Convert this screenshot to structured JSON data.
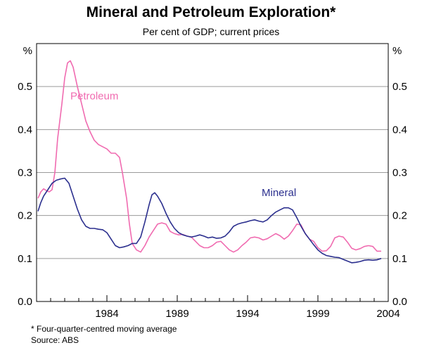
{
  "chart_data": {
    "type": "line",
    "title": "Mineral and Petroleum Exploration*",
    "subtitle": "Per cent of GDP; current prices",
    "ylabel_left": "%",
    "ylabel_right": "%",
    "ylim": [
      0,
      0.6
    ],
    "yticks": [
      0.0,
      0.1,
      0.2,
      0.3,
      0.4,
      0.5
    ],
    "ytick_labels": [
      "0.0",
      "0.1",
      "0.2",
      "0.3",
      "0.4",
      "0.5"
    ],
    "xlim": [
      1979.5,
      2004.5
    ],
    "xticks": [
      1984.5,
      1989.5,
      1994.5,
      1999.5,
      2004.5
    ],
    "xtick_labels": [
      "1984",
      "1989",
      "1994",
      "1999",
      "2004"
    ],
    "series": [
      {
        "name": "Petroleum",
        "color": "#f06bb0",
        "label_pos": [
          1981.9,
          0.47
        ],
        "x": [
          1979.6,
          1979.8,
          1980.0,
          1980.2,
          1980.4,
          1980.6,
          1980.8,
          1981.0,
          1981.3,
          1981.5,
          1981.7,
          1981.9,
          1982.1,
          1982.4,
          1982.7,
          1983.0,
          1983.3,
          1983.6,
          1983.9,
          1984.2,
          1984.5,
          1984.8,
          1985.1,
          1985.4,
          1985.6,
          1985.9,
          1986.1,
          1986.3,
          1986.6,
          1986.9,
          1987.2,
          1987.5,
          1987.8,
          1988.1,
          1988.4,
          1988.7,
          1989.0,
          1989.3,
          1989.6,
          1989.9,
          1990.2,
          1990.5,
          1990.8,
          1991.1,
          1991.4,
          1991.7,
          1992.0,
          1992.3,
          1992.6,
          1992.9,
          1993.2,
          1993.5,
          1993.8,
          1994.1,
          1994.4,
          1994.7,
          1995.0,
          1995.3,
          1995.6,
          1995.9,
          1996.2,
          1996.5,
          1996.8,
          1997.1,
          1997.4,
          1997.7,
          1998.0,
          1998.3,
          1998.6,
          1998.9,
          1999.2,
          1999.5,
          1999.8,
          2000.1,
          2000.4,
          2000.7,
          2001.0,
          2001.3,
          2001.6,
          2001.9,
          2002.2,
          2002.5,
          2002.8,
          2003.1,
          2003.4,
          2003.7,
          2004.0
        ],
        "y": [
          0.24,
          0.255,
          0.262,
          0.258,
          0.255,
          0.26,
          0.3,
          0.38,
          0.46,
          0.52,
          0.555,
          0.56,
          0.545,
          0.5,
          0.46,
          0.42,
          0.395,
          0.375,
          0.365,
          0.36,
          0.355,
          0.345,
          0.345,
          0.335,
          0.3,
          0.24,
          0.18,
          0.135,
          0.12,
          0.115,
          0.13,
          0.15,
          0.165,
          0.18,
          0.183,
          0.18,
          0.163,
          0.158,
          0.155,
          0.156,
          0.152,
          0.15,
          0.14,
          0.13,
          0.125,
          0.125,
          0.13,
          0.138,
          0.14,
          0.13,
          0.12,
          0.115,
          0.12,
          0.13,
          0.138,
          0.148,
          0.15,
          0.148,
          0.143,
          0.146,
          0.152,
          0.158,
          0.153,
          0.145,
          0.152,
          0.165,
          0.18,
          0.178,
          0.158,
          0.145,
          0.14,
          0.125,
          0.117,
          0.118,
          0.128,
          0.148,
          0.152,
          0.15,
          0.138,
          0.124,
          0.12,
          0.123,
          0.128,
          0.13,
          0.128,
          0.117,
          0.117
        ]
      },
      {
        "name": "Mineral",
        "color": "#2b2f8e",
        "label_pos": [
          1995.5,
          0.245
        ],
        "x": [
          1979.6,
          1979.8,
          1980.0,
          1980.3,
          1980.6,
          1980.9,
          1981.2,
          1981.5,
          1981.8,
          1982.1,
          1982.4,
          1982.7,
          1983.0,
          1983.3,
          1983.6,
          1983.9,
          1984.2,
          1984.5,
          1984.8,
          1985.1,
          1985.4,
          1985.7,
          1986.0,
          1986.3,
          1986.6,
          1986.9,
          1987.2,
          1987.5,
          1987.7,
          1987.9,
          1988.1,
          1988.4,
          1988.7,
          1989.0,
          1989.3,
          1989.6,
          1989.9,
          1990.2,
          1990.5,
          1990.8,
          1991.1,
          1991.4,
          1991.7,
          1992.0,
          1992.3,
          1992.6,
          1992.9,
          1993.2,
          1993.5,
          1993.8,
          1994.1,
          1994.4,
          1994.7,
          1995.0,
          1995.3,
          1995.6,
          1995.9,
          1996.2,
          1996.5,
          1996.8,
          1997.1,
          1997.4,
          1997.7,
          1998.0,
          1998.3,
          1998.6,
          1998.9,
          1999.2,
          1999.5,
          1999.8,
          2000.1,
          2000.4,
          2000.7,
          2001.0,
          2001.3,
          2001.6,
          2001.9,
          2002.2,
          2002.5,
          2002.8,
          2003.1,
          2003.4,
          2003.7,
          2004.0
        ],
        "y": [
          0.21,
          0.23,
          0.245,
          0.26,
          0.275,
          0.282,
          0.285,
          0.287,
          0.275,
          0.245,
          0.215,
          0.19,
          0.175,
          0.17,
          0.17,
          0.168,
          0.167,
          0.16,
          0.145,
          0.13,
          0.125,
          0.127,
          0.13,
          0.135,
          0.135,
          0.15,
          0.185,
          0.225,
          0.248,
          0.253,
          0.245,
          0.228,
          0.205,
          0.185,
          0.17,
          0.16,
          0.155,
          0.152,
          0.15,
          0.152,
          0.155,
          0.152,
          0.148,
          0.15,
          0.147,
          0.148,
          0.152,
          0.162,
          0.175,
          0.18,
          0.183,
          0.185,
          0.188,
          0.19,
          0.187,
          0.185,
          0.19,
          0.2,
          0.208,
          0.213,
          0.218,
          0.218,
          0.213,
          0.195,
          0.175,
          0.158,
          0.145,
          0.132,
          0.12,
          0.112,
          0.107,
          0.105,
          0.103,
          0.102,
          0.098,
          0.094,
          0.09,
          0.091,
          0.093,
          0.096,
          0.097,
          0.096,
          0.097,
          0.1
        ]
      }
    ],
    "footnote": "*   Four-quarter-centred moving average",
    "source": "Source: ABS"
  }
}
